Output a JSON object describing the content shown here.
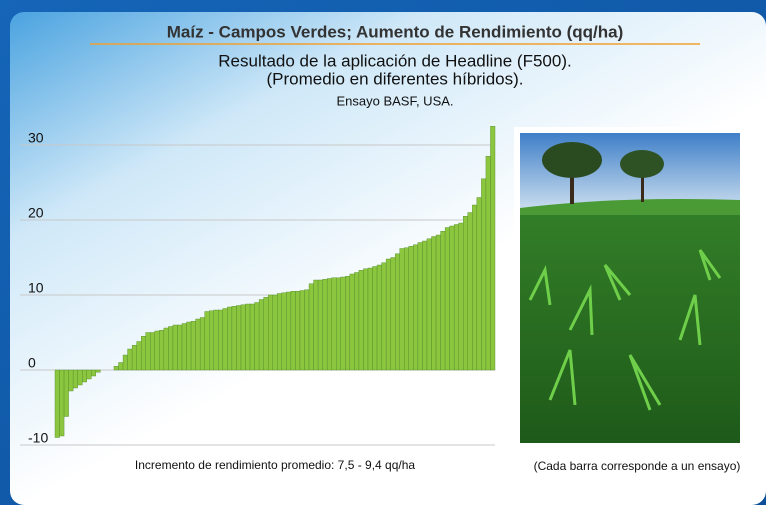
{
  "chart_data": {
    "type": "bar",
    "title": "Maíz - Campos Verdes; Aumento de Rendimiento (qq/ha)",
    "subtitle": [
      "Resultado de la aplicación de Headline (F500).",
      "(Promedio en diferentes híbridos)."
    ],
    "source": "Ensayo BASF, USA.",
    "x_label": "Incremento de rendimiento promedio: 7,5 - 9,4 qq/ha",
    "annotation": "(Cada barra corresponde a un ensayo)",
    "values": [
      -9,
      -8.8,
      -6.2,
      -2.8,
      -2.4,
      -2,
      -1.6,
      -1.2,
      -0.8,
      -0.3,
      0,
      0,
      0,
      0.5,
      1,
      2,
      2.8,
      3.3,
      3.8,
      4.5,
      5,
      5,
      5.2,
      5.3,
      5.6,
      5.8,
      6,
      6,
      6.2,
      6.4,
      6.5,
      6.8,
      7,
      7.8,
      7.9,
      8,
      8,
      8.2,
      8.4,
      8.5,
      8.6,
      8.7,
      8.8,
      8.8,
      9,
      9.4,
      9.7,
      10,
      10,
      10.2,
      10.3,
      10.4,
      10.5,
      10.5,
      10.6,
      10.7,
      11.5,
      12,
      12,
      12.1,
      12.2,
      12.3,
      12.3,
      12.4,
      12.5,
      12.8,
      13,
      13.3,
      13.5,
      13.6,
      13.8,
      14,
      14.3,
      14.8,
      15,
      15.5,
      16.2,
      16.3,
      16.5,
      16.7,
      17,
      17.2,
      17.5,
      17.8,
      18,
      18.5,
      19,
      19.2,
      19.4,
      19.6,
      20.5,
      21,
      22,
      23,
      25.5,
      28.5,
      32.5
    ],
    "color": "#8cc63e",
    "ylim": [
      -11,
      33
    ],
    "yticks": [
      -10,
      0,
      10,
      20,
      30
    ],
    "grid": true
  }
}
